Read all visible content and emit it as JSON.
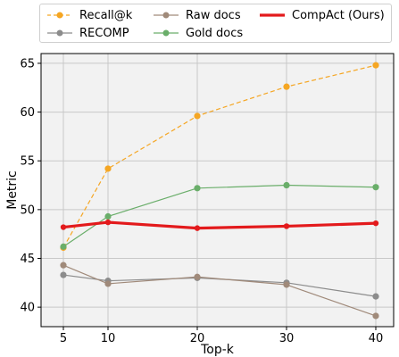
{
  "chart_data": {
    "type": "line",
    "xlabel": "Top-k",
    "ylabel": "Metric",
    "x": [
      5,
      10,
      20,
      30,
      40
    ],
    "xticks": [
      "5",
      "10",
      "20",
      "30",
      "40"
    ],
    "yticks": [
      "40",
      "45",
      "50",
      "55",
      "60",
      "65"
    ],
    "xlim": [
      2.5,
      42.0
    ],
    "ylim": [
      38.0,
      66.0
    ],
    "grid": true,
    "legend_position": "top",
    "series": [
      {
        "name": "Recall@k",
        "color": "#f5a623",
        "style": "dashed",
        "width": 1.2,
        "values": [
          46.1,
          54.2,
          59.6,
          62.6,
          64.8
        ]
      },
      {
        "name": "RECOMP",
        "color": "#8c8c8c",
        "style": "solid",
        "width": 1.2,
        "values": [
          43.3,
          42.7,
          43.0,
          42.5,
          41.1
        ]
      },
      {
        "name": "Raw docs",
        "color": "#a08a7a",
        "style": "solid",
        "width": 1.2,
        "values": [
          44.3,
          42.4,
          43.1,
          42.3,
          39.1
        ]
      },
      {
        "name": "Gold docs",
        "color": "#6aae6a",
        "style": "solid",
        "width": 1.2,
        "values": [
          46.2,
          49.3,
          52.2,
          52.5,
          52.3
        ]
      },
      {
        "name": "CompAct (Ours)",
        "color": "#e31a1c",
        "style": "solid",
        "width": 3.2,
        "values": [
          48.2,
          48.7,
          48.1,
          48.3,
          48.6
        ]
      }
    ]
  }
}
